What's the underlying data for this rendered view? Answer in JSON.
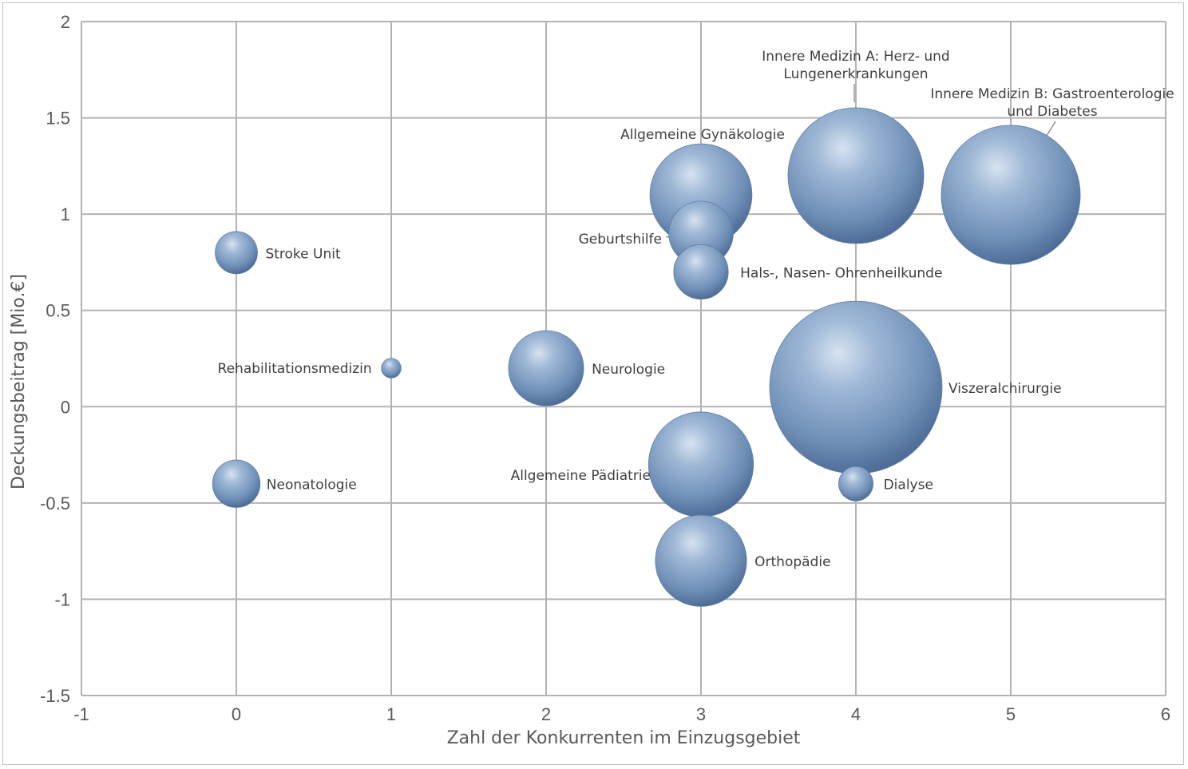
{
  "chart_data": {
    "type": "bubble",
    "title": "",
    "xlabel": "Zahl der Konkurrenten im Einzugsgebiet",
    "ylabel": "Deckungsbeitrag [Mio.€]",
    "xlim": [
      -1,
      6
    ],
    "ylim": [
      -1.5,
      2
    ],
    "x_ticks": [
      "-1",
      "0",
      "1",
      "2",
      "3",
      "4",
      "5",
      "6"
    ],
    "y_ticks": [
      "2",
      "1.5",
      "1",
      "0.5",
      "0",
      "-0.5",
      "-1",
      "-1.5"
    ],
    "grid": true,
    "bubble_color": "#7f9cc0",
    "points": [
      {
        "label": "Viszeralchirurgie",
        "x": 4,
        "y": 0.1,
        "size": 100
      },
      {
        "label": "Innere Medizin A: Herz- und Lungenerkrankungen",
        "x": 4,
        "y": 1.2,
        "size": 62
      },
      {
        "label": "Innere Medizin B: Gastroenterologie und Diabetes",
        "x": 5,
        "y": 1.1,
        "size": 65
      },
      {
        "label": "Allgemeine Gynäkologie",
        "x": 3,
        "y": 1.1,
        "size": 35
      },
      {
        "label": "Geburtshilfe",
        "x": 3,
        "y": 0.9,
        "size": 14
      },
      {
        "label": "Hals-, Nasen- Ohrenheilkunde",
        "x": 3,
        "y": 0.7,
        "size": 10
      },
      {
        "label": "Stroke Unit",
        "x": 0,
        "y": 0.8,
        "size": 6
      },
      {
        "label": "Rehabilitationsmedizin",
        "x": 1,
        "y": 0.2,
        "size": 1.3
      },
      {
        "label": "Neurologie",
        "x": 2,
        "y": 0.2,
        "size": 19
      },
      {
        "label": "Allgemeine Pädiatrie",
        "x": 3,
        "y": -0.3,
        "size": 37
      },
      {
        "label": "Neonatologie",
        "x": 0,
        "y": -0.4,
        "size": 7.6
      },
      {
        "label": "Dialyse",
        "x": 4,
        "y": -0.4,
        "size": 4
      },
      {
        "label": "Orthopädie",
        "x": 3,
        "y": -0.8,
        "size": 28
      }
    ]
  }
}
